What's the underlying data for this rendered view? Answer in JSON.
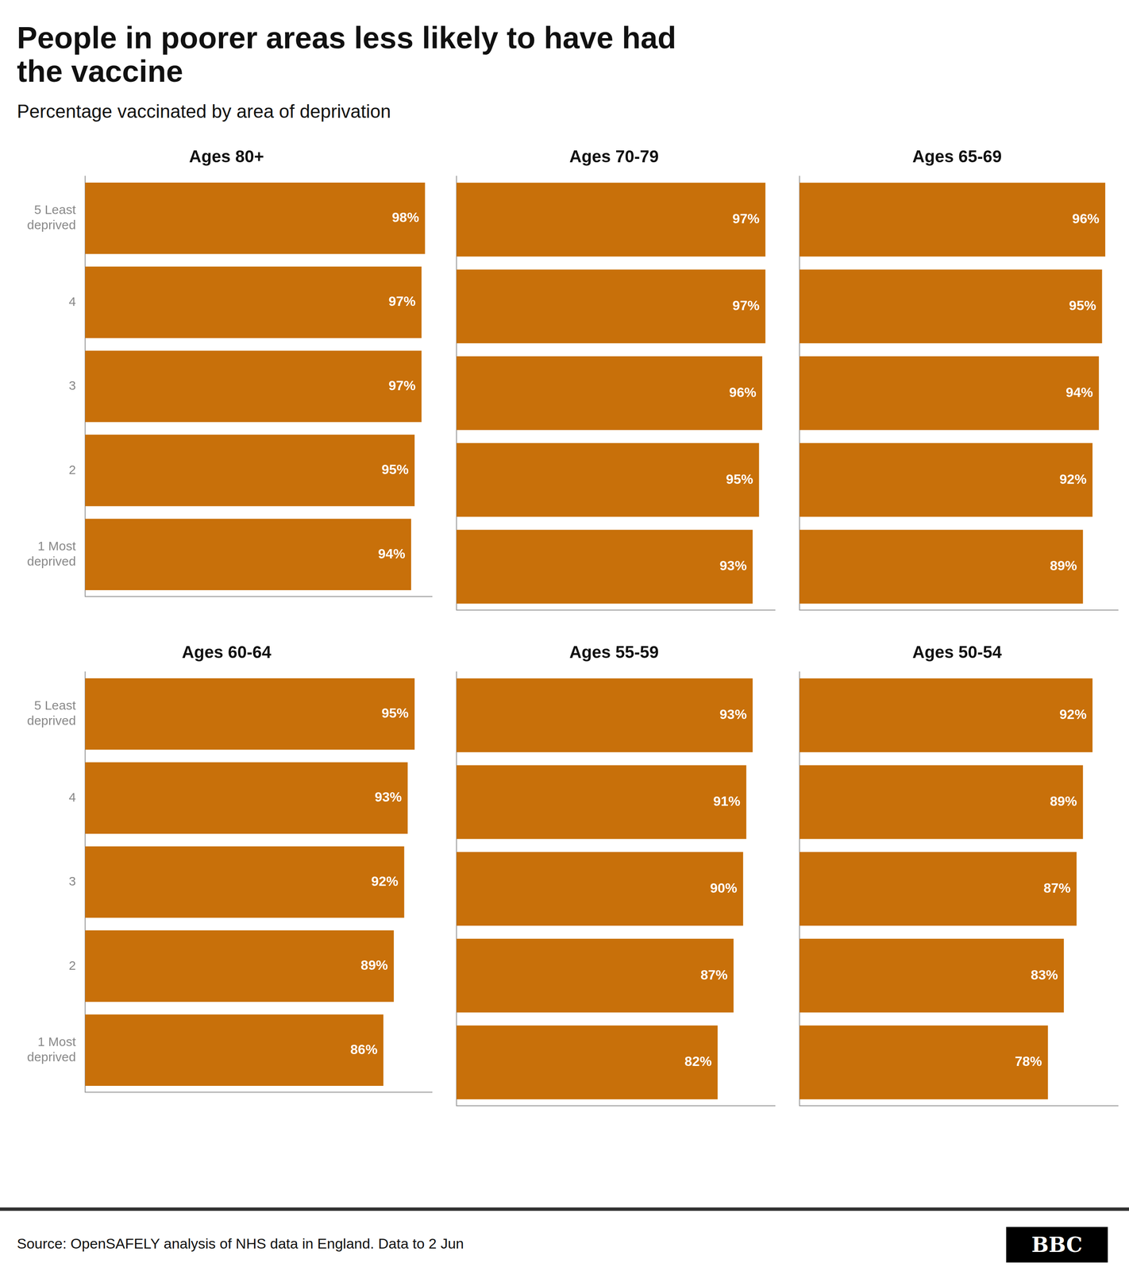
{
  "title": "People in poorer areas less likely to have had\nthe vaccine",
  "subtitle": "Percentage vaccinated by area of deprivation",
  "annotations": [
    "Source: OpenSAFELY analysis of NHS data in England. Data to 2 Jun",
    "BBC"
  ],
  "chart_data": [
    {
      "type": "bar",
      "orientation": "horizontal",
      "title": "Ages 80+",
      "categories": [
        "5 Least\ndeprived",
        "4",
        "3",
        "2",
        "1 Most\ndeprived"
      ],
      "values": [
        98,
        97,
        97,
        95,
        94
      ],
      "value_labels": [
        "98%",
        "97%",
        "97%",
        "95%",
        "94%"
      ],
      "color": "#C8700A",
      "xlim": [
        0,
        100
      ],
      "grid": false,
      "data_labels": true,
      "tick_labels": "y"
    },
    {
      "type": "bar",
      "orientation": "horizontal",
      "title": "Ages 70-79",
      "categories": [
        "5 Least\ndeprived",
        "4",
        "3",
        "2",
        "1 Most\ndeprived"
      ],
      "values": [
        97,
        97,
        96,
        95,
        93
      ],
      "value_labels": [
        "97%",
        "97%",
        "96%",
        "95%",
        "93%"
      ],
      "color": "#C8700A",
      "xlim": [
        0,
        100
      ],
      "grid": false,
      "data_labels": true,
      "tick_labels": false
    },
    {
      "type": "bar",
      "orientation": "horizontal",
      "title": "Ages 65-69",
      "categories": [
        "5 Least\ndeprived",
        "4",
        "3",
        "2",
        "1 Most\ndeprived"
      ],
      "values": [
        96,
        95,
        94,
        92,
        89
      ],
      "value_labels": [
        "96%",
        "95%",
        "94%",
        "92%",
        "89%"
      ],
      "color": "#C8700A",
      "xlim": [
        0,
        100
      ],
      "grid": false,
      "data_labels": true,
      "tick_labels": false
    },
    {
      "type": "bar",
      "orientation": "horizontal",
      "title": "Ages 60-64",
      "categories": [
        "5 Least\ndeprived",
        "4",
        "3",
        "2",
        "1 Most\ndeprived"
      ],
      "values": [
        95,
        93,
        92,
        89,
        86
      ],
      "value_labels": [
        "95%",
        "93%",
        "92%",
        "89%",
        "86%"
      ],
      "color": "#C8700A",
      "xlim": [
        0,
        100
      ],
      "grid": false,
      "data_labels": true,
      "tick_labels": "y"
    },
    {
      "type": "bar",
      "orientation": "horizontal",
      "title": "Ages 55-59",
      "categories": [
        "5 Least\ndeprived",
        "4",
        "3",
        "2",
        "1 Most\ndeprived"
      ],
      "values": [
        93,
        91,
        90,
        87,
        82
      ],
      "value_labels": [
        "93%",
        "91%",
        "90%",
        "87%",
        "82%"
      ],
      "color": "#C8700A",
      "xlim": [
        0,
        100
      ],
      "grid": false,
      "data_labels": true,
      "tick_labels": false
    },
    {
      "type": "bar",
      "orientation": "horizontal",
      "title": "Ages 50-54",
      "categories": [
        "5 Least\ndeprived",
        "4",
        "3",
        "2",
        "1 Most\ndeprived"
      ],
      "values": [
        92,
        89,
        87,
        83,
        78
      ],
      "value_labels": [
        "92%",
        "89%",
        "87%",
        "83%",
        "78%"
      ],
      "color": "#C8700A",
      "xlim": [
        0,
        100
      ],
      "grid": false,
      "data_labels": true,
      "tick_labels": false
    }
  ]
}
